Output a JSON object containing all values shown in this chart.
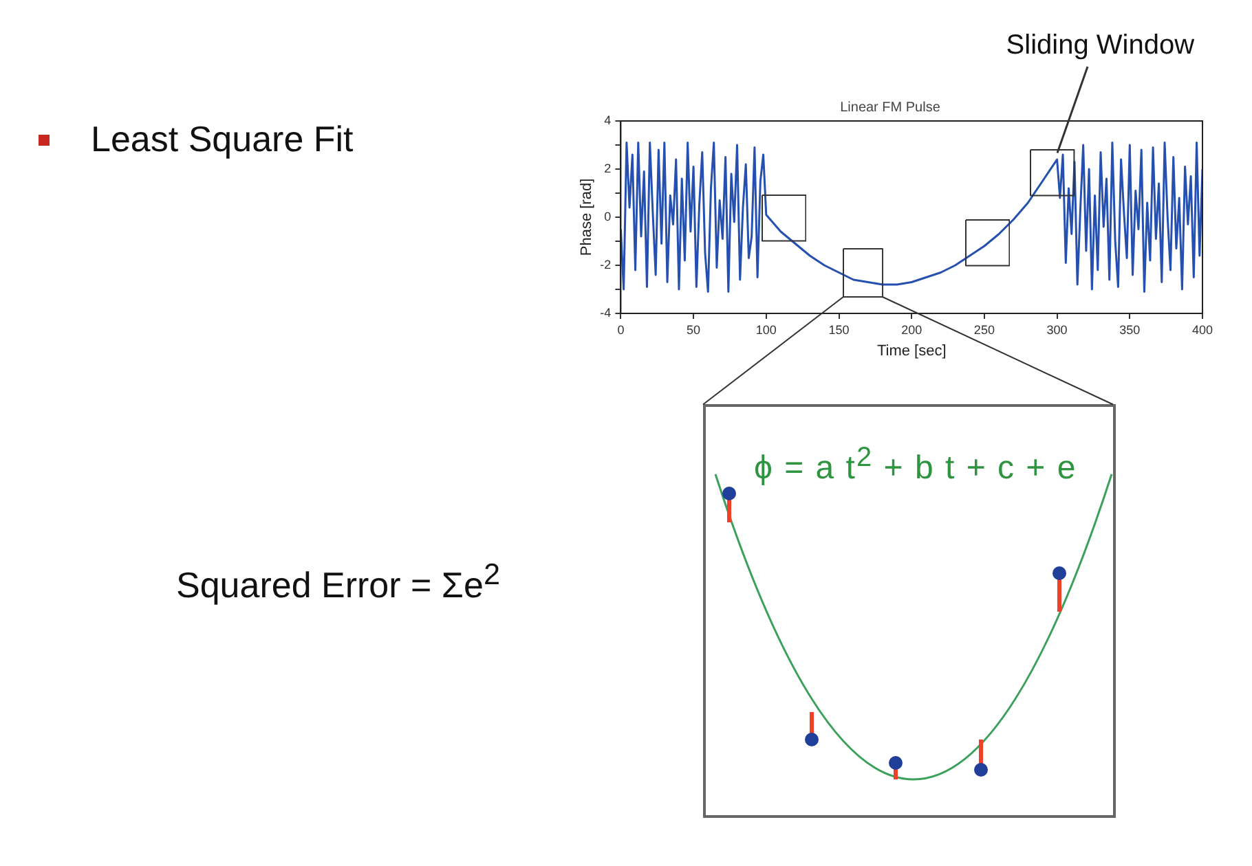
{
  "chart_data": {
    "type": "line",
    "title": "Linear FM Pulse",
    "xlabel": "Time [sec]",
    "ylabel": "Phase [rad]",
    "xlim": [
      0,
      400
    ],
    "xticks": [
      0,
      50,
      100,
      150,
      200,
      250,
      300,
      350,
      400
    ],
    "ylim": [
      -4,
      4
    ],
    "yticks": [
      -4,
      -2,
      0,
      2,
      4
    ],
    "grid": false,
    "legend": false,
    "annotations": [
      {
        "text": "Sliding Window",
        "x": 300,
        "y": 2.7
      },
      "ϕ = a t$^{2}$ + b t + c + e",
      "Least Square Fit",
      "Squared Error = Σe$^{2}$"
    ],
    "series": [
      {
        "color": "#2550b0",
        "x": [
          0,
          2,
          4,
          6,
          8,
          10,
          12,
          14,
          16,
          18,
          20,
          22,
          24,
          26,
          28,
          30,
          32,
          34,
          36,
          38,
          40,
          42,
          44,
          46,
          48,
          50,
          52,
          54,
          56,
          58,
          60,
          62,
          64,
          66,
          68,
          70,
          72,
          74,
          76,
          78,
          80,
          82,
          84,
          86,
          88,
          90,
          92,
          94,
          96,
          98,
          100,
          110,
          120,
          130,
          140,
          150,
          160,
          170,
          180,
          190,
          200,
          210,
          220,
          230,
          240,
          250,
          260,
          270,
          280,
          290,
          300,
          302,
          304,
          306,
          308,
          310,
          312,
          314,
          316,
          318,
          320,
          322,
          324,
          326,
          328,
          330,
          332,
          334,
          336,
          338,
          340,
          342,
          344,
          346,
          348,
          350,
          352,
          354,
          356,
          358,
          360,
          362,
          364,
          366,
          368,
          370,
          372,
          374,
          376,
          378,
          380,
          382,
          384,
          386,
          388,
          390,
          392,
          394,
          396,
          398,
          400
        ],
        "values": [
          -0.5,
          -3.0,
          3.1,
          0.4,
          2.6,
          -2.2,
          3.1,
          -0.8,
          1.9,
          -2.9,
          3.1,
          0.2,
          -2.4,
          2.8,
          -1.1,
          3.1,
          -2.7,
          0.9,
          -0.3,
          2.4,
          -3.0,
          1.6,
          -1.8,
          3.1,
          -0.6,
          2.1,
          -2.9,
          0.5,
          2.7,
          -1.5,
          -3.1,
          1.2,
          3.1,
          -2.1,
          0.7,
          -0.9,
          2.5,
          -3.1,
          1.8,
          -0.2,
          3.0,
          -2.6,
          0.4,
          2.2,
          -1.7,
          -0.8,
          2.9,
          -2.5,
          1.5,
          2.6,
          0.1,
          -0.6,
          -1.1,
          -1.6,
          -2.0,
          -2.3,
          -2.6,
          -2.7,
          -2.8,
          -2.8,
          -2.7,
          -2.5,
          -2.3,
          -2.0,
          -1.6,
          -1.2,
          -0.7,
          -0.1,
          0.6,
          1.5,
          2.4,
          0.8,
          2.6,
          -1.9,
          1.2,
          -0.7,
          2.3,
          -2.8,
          0.3,
          3.0,
          -1.4,
          2.0,
          -3.0,
          0.9,
          -2.2,
          2.7,
          -0.4,
          1.6,
          -2.6,
          3.1,
          -1.0,
          -2.9,
          2.4,
          0.2,
          -1.7,
          3.0,
          -2.4,
          1.1,
          -0.5,
          2.8,
          -3.1,
          0.6,
          -1.8,
          2.9,
          -0.9,
          1.4,
          -2.7,
          3.1,
          0.0,
          -2.2,
          2.5,
          -1.3,
          0.8,
          -3.0,
          2.1,
          -0.3,
          1.7,
          -2.5,
          3.1,
          -1.6,
          2.0
        ]
      }
    ]
  }
}
